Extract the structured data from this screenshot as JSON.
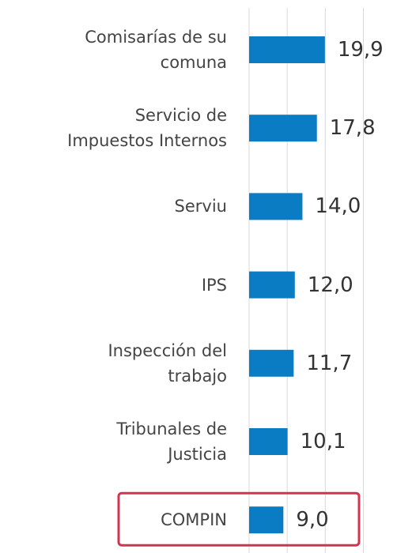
{
  "chart_data": {
    "type": "bar",
    "orientation": "horizontal",
    "categories": [
      "Comisarías de su\ncomuna",
      "Servicio de\nImpuestos Internos",
      "Serviu",
      "IPS",
      "Inspección del\ntrabajo",
      "Tribunales de\nJusticia",
      "COMPIN"
    ],
    "values": [
      19.9,
      17.8,
      14.0,
      12.0,
      11.7,
      10.1,
      9.0
    ],
    "value_labels": [
      "19,9",
      "17,8",
      "14,0",
      "12,0",
      "11,7",
      "10,1",
      "9,0"
    ],
    "color": "#0a7cc4",
    "highlight": 6,
    "highlight_color": "#d0344f",
    "xlim": [
      0,
      38
    ],
    "xticks": [
      0,
      10,
      20,
      30
    ],
    "grid": true
  }
}
